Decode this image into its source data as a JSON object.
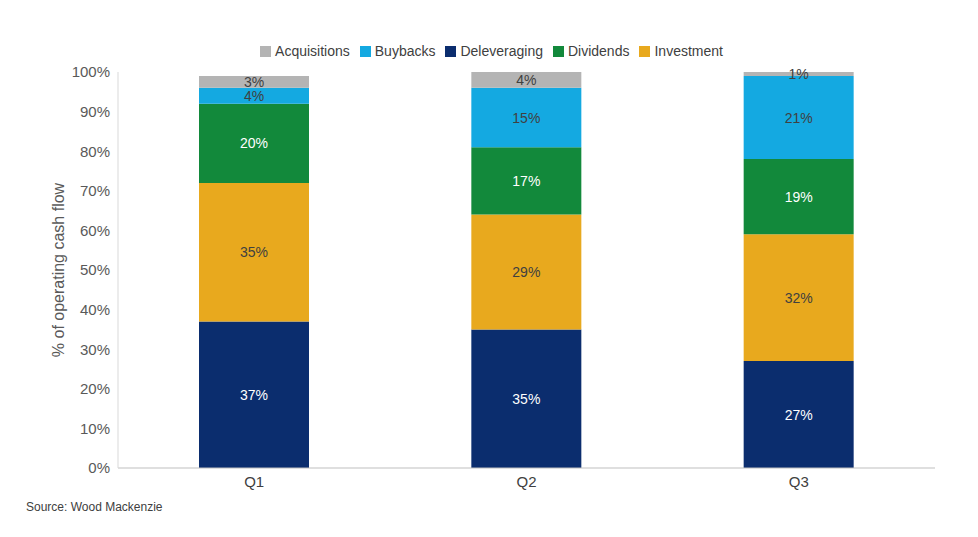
{
  "chart_data": {
    "type": "bar",
    "stacked": true,
    "data_labels": true,
    "grid": false,
    "legend": "top",
    "y_label": "% of operating cash flow",
    "annotations": [
      "Source: Wood Mackenzie"
    ],
    "categories": [
      "Q1",
      "Q2",
      "Q3"
    ],
    "series": [
      {
        "name": "Deleveraging",
        "color": "#0b2d6e",
        "values": [
          37,
          35,
          27
        ],
        "value_labels": [
          "37%",
          "35%",
          "27%"
        ]
      },
      {
        "name": "Investment",
        "color": "#e8a91e",
        "values": [
          35,
          29,
          32
        ],
        "value_labels": [
          "35%",
          "29%",
          "32%"
        ]
      },
      {
        "name": "Dividends",
        "color": "#12893b",
        "values": [
          20,
          17,
          19
        ],
        "value_labels": [
          "20%",
          "17%",
          "19%"
        ]
      },
      {
        "name": "Buybacks",
        "color": "#14a9e1",
        "values": [
          4,
          15,
          21
        ],
        "value_labels": [
          "4%",
          "15%",
          "21%"
        ]
      },
      {
        "name": "Acquisitions",
        "color": "#b4b4b4",
        "values": [
          3,
          4,
          1
        ],
        "value_labels": [
          "3%",
          "4%",
          "1%"
        ]
      }
    ],
    "ylim": [
      0,
      100
    ],
    "yticks": [
      {
        "value": 0,
        "label": "0%"
      },
      {
        "value": 10,
        "label": "10%"
      },
      {
        "value": 20,
        "label": "20%"
      },
      {
        "value": 30,
        "label": "30%"
      },
      {
        "value": 40,
        "label": "40%"
      },
      {
        "value": 50,
        "label": "50%"
      },
      {
        "value": 60,
        "label": "60%"
      },
      {
        "value": 70,
        "label": "70%"
      },
      {
        "value": 80,
        "label": "80%"
      },
      {
        "value": 90,
        "label": "90%"
      },
      {
        "value": 100,
        "label": "100%"
      }
    ]
  }
}
